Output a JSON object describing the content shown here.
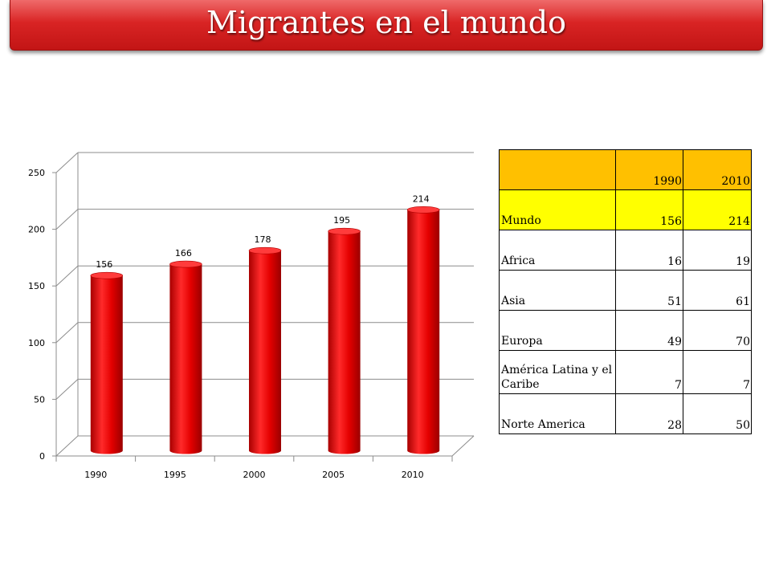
{
  "slide": {
    "title": "Migrantes en el mundo"
  },
  "chart_data": {
    "type": "bar",
    "categories": [
      "1990",
      "1995",
      "2000",
      "2005",
      "2010"
    ],
    "values": [
      156,
      166,
      178,
      195,
      214
    ],
    "data_labels": [
      "156",
      "166",
      "178",
      "195",
      "214"
    ],
    "y_ticks": [
      "0",
      "50",
      "100",
      "150",
      "200",
      "250"
    ],
    "ylim": [
      0,
      250
    ],
    "grid": true,
    "legend": "none",
    "bar_color": "#ee1111",
    "style": "3d-cylinder"
  },
  "table": {
    "header": [
      "",
      "1990",
      "2010"
    ],
    "rows": [
      {
        "region": "Mundo",
        "y1990": "156",
        "y2010": "214"
      },
      {
        "region": "Africa",
        "y1990": "16",
        "y2010": "19"
      },
      {
        "region": "Asia",
        "y1990": "51",
        "y2010": "61"
      },
      {
        "region": "Europa",
        "y1990": "49",
        "y2010": "70"
      },
      {
        "region": "América Latina y el Caribe",
        "y1990": "7",
        "y2010": "7"
      },
      {
        "region": "Norte America",
        "y1990": "28",
        "y2010": "50"
      }
    ],
    "colors": {
      "header": "#ffc000",
      "highlight": "#ffff00"
    }
  }
}
